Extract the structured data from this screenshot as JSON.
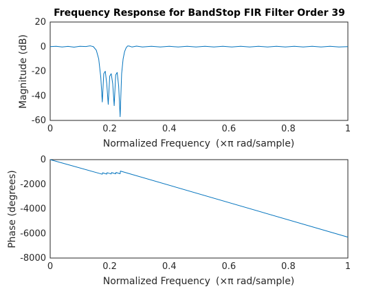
{
  "chart_data": [
    {
      "type": "line",
      "title": "Frequency Response for BandStop FIR Filter Order 39",
      "xlabel_text": "Normalized Frequency",
      "xlabel_unit": "(×π rad/sample)",
      "ylabel": "Magnitude (dB)",
      "xlim": [
        0,
        1
      ],
      "ylim": [
        -60,
        20
      ],
      "xticks": [
        "0",
        "0.2",
        "0.4",
        "0.6",
        "0.8",
        "1"
      ],
      "yticks": [
        "20",
        "0",
        "-20",
        "-40",
        "-60"
      ],
      "grid": true,
      "series": [
        {
          "color": "#0072bd",
          "x": [
            0,
            0.02,
            0.04,
            0.06,
            0.08,
            0.1,
            0.12,
            0.135,
            0.145,
            0.155,
            0.163,
            0.17,
            0.175,
            0.18,
            0.185,
            0.19,
            0.195,
            0.2,
            0.205,
            0.21,
            0.215,
            0.22,
            0.225,
            0.23,
            0.235,
            0.24,
            0.245,
            0.25,
            0.255,
            0.26,
            0.265,
            0.275,
            0.29,
            0.31,
            0.34,
            0.37,
            0.4,
            0.43,
            0.46,
            0.49,
            0.52,
            0.55,
            0.58,
            0.61,
            0.64,
            0.67,
            0.7,
            0.73,
            0.76,
            0.79,
            0.82,
            0.85,
            0.88,
            0.91,
            0.94,
            0.97,
            1.0
          ],
          "y": [
            0,
            0.3,
            -0.3,
            0.2,
            -0.4,
            0.3,
            0.1,
            0.6,
            0,
            -3,
            -10,
            -25,
            -45,
            -22,
            -20,
            -30,
            -47,
            -24,
            -22,
            -30,
            -48,
            -23,
            -21,
            -32,
            -57,
            -22,
            -10,
            -4,
            -1,
            0.5,
            0.5,
            -0.3,
            0.4,
            -0.3,
            0.3,
            -0.3,
            0.3,
            -0.3,
            0.3,
            -0.3,
            0.3,
            -0.3,
            0.3,
            -0.3,
            0.3,
            -0.3,
            0.3,
            -0.3,
            0.3,
            -0.3,
            0.3,
            -0.3,
            0.3,
            -0.3,
            0.3,
            -0.3,
            0
          ]
        }
      ]
    },
    {
      "type": "line",
      "xlabel_text": "Normalized Frequency",
      "xlabel_unit": "(×π rad/sample)",
      "ylabel": "Phase (degrees)",
      "xlim": [
        0,
        1
      ],
      "ylim": [
        -8000,
        0
      ],
      "xticks": [
        "0",
        "0.2",
        "0.4",
        "0.6",
        "0.8",
        "1"
      ],
      "yticks": [
        "0",
        "-2000",
        "-4000",
        "-6000",
        "-8000"
      ],
      "grid": true,
      "series": [
        {
          "color": "#0072bd",
          "x": [
            0,
            0.175,
            0.176,
            0.19,
            0.191,
            0.205,
            0.206,
            0.22,
            0.221,
            0.235,
            0.236,
            1.0
          ],
          "y": [
            0,
            -1185,
            -1070,
            -1175,
            -1060,
            -1165,
            -1050,
            -1155,
            -1040,
            -1145,
            -930,
            -6300
          ]
        }
      ]
    }
  ]
}
